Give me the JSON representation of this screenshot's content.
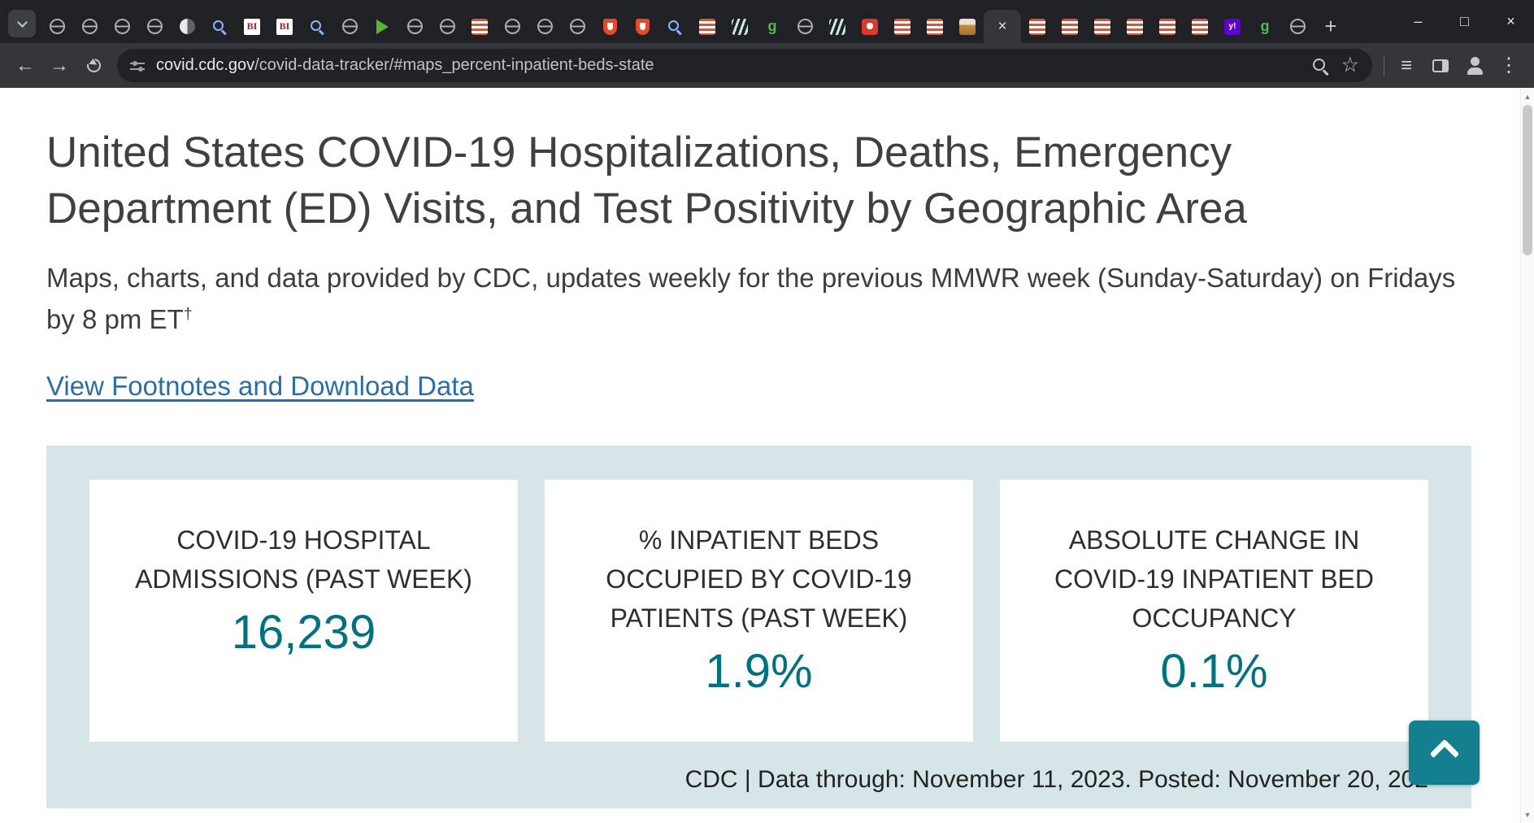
{
  "browser": {
    "new_tab_glyph": "+",
    "tab_close_glyph": "×",
    "window_controls": {
      "minimize": "–",
      "maximize": "□",
      "close": "×"
    },
    "icons": {
      "back": "←",
      "forward": "→",
      "star": "☆",
      "list": "≡",
      "menu": "⋮",
      "scroll_up": "▲",
      "scroll_down": "▼"
    },
    "active_tab_index": 29,
    "tabs": [
      {
        "icon": "globe"
      },
      {
        "icon": "globe"
      },
      {
        "icon": "globe"
      },
      {
        "icon": "globe"
      },
      {
        "icon": "half"
      },
      {
        "icon": "search"
      },
      {
        "icon": "bi",
        "label": "BI"
      },
      {
        "icon": "bi",
        "label": "BI"
      },
      {
        "icon": "search"
      },
      {
        "icon": "globe"
      },
      {
        "icon": "play"
      },
      {
        "icon": "globe"
      },
      {
        "icon": "globe"
      },
      {
        "icon": "stripes"
      },
      {
        "icon": "globe"
      },
      {
        "icon": "globe"
      },
      {
        "icon": "globe"
      },
      {
        "icon": "shield"
      },
      {
        "icon": "shield"
      },
      {
        "icon": "search"
      },
      {
        "icon": "stripes"
      },
      {
        "icon": "claw"
      },
      {
        "icon": "g",
        "label": "g"
      },
      {
        "icon": "globe"
      },
      {
        "icon": "claw"
      },
      {
        "icon": "badge"
      },
      {
        "icon": "stripes"
      },
      {
        "icon": "stripes"
      },
      {
        "icon": "photo"
      },
      {
        "icon": "active"
      },
      {
        "icon": "stripes"
      },
      {
        "icon": "stripes"
      },
      {
        "icon": "stripes"
      },
      {
        "icon": "stripes"
      },
      {
        "icon": "stripes"
      },
      {
        "icon": "stripes"
      },
      {
        "icon": "yahoo",
        "label": "y!"
      },
      {
        "icon": "g",
        "label": "g"
      },
      {
        "icon": "globe"
      }
    ],
    "nav": {
      "url_host": "covid.cdc.gov",
      "url_path": "/covid-data-tracker/#maps_percent-inpatient-beds-state"
    }
  },
  "page": {
    "title": "United States COVID-19 Hospitalizations, Deaths, Emergency Department (ED) Visits, and Test Positivity by Geographic Area",
    "subtitle": "Maps, charts, and data provided by CDC, updates weekly for the previous MMWR week (Sunday-Saturday) on Fridays by 8 pm ET",
    "subtitle_sup": "†",
    "footnotes_link": "View Footnotes and Download Data",
    "stat_cards": [
      {
        "label": "COVID-19 HOSPITAL ADMISSIONS (PAST WEEK)",
        "value": "16,239"
      },
      {
        "label": "% INPATIENT BEDS OCCUPIED BY COVID-19 PATIENTS (PAST WEEK)",
        "value": "1.9%"
      },
      {
        "label": "ABSOLUTE CHANGE IN COVID-19 INPATIENT BED OCCUPANCY",
        "value": "0.1%"
      }
    ],
    "data_note": "CDC | Data through: November 11, 2023. Posted: November 20, 202"
  },
  "colors": {
    "accent_teal": "#00727f",
    "panel_bg": "#d5e5e8",
    "link_blue": "#2b6da5",
    "button_teal": "#137f8f"
  }
}
